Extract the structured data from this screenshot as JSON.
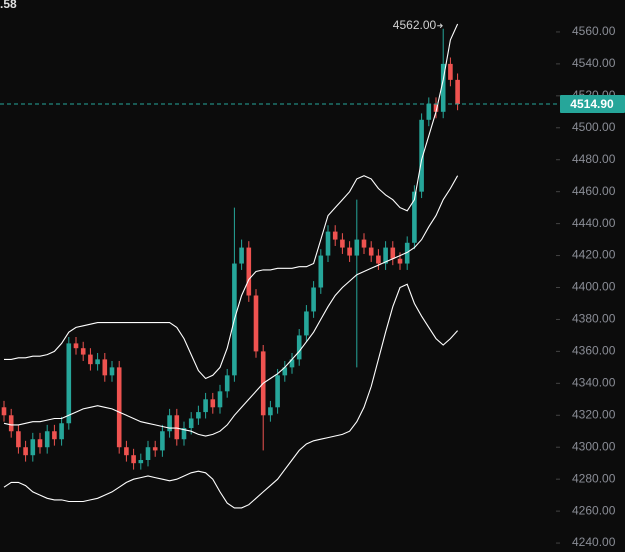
{
  "header_fragment": ".58",
  "chart_data": {
    "type": "candlestick",
    "open": [
      4325,
      4320,
      4310,
      4300,
      4295,
      4305,
      4300,
      4310,
      4305,
      4315,
      4365,
      4362,
      4358,
      4352,
      4355,
      4345,
      4350,
      4300,
      4295,
      4290,
      4292,
      4300,
      4298,
      4310,
      4320,
      4305,
      4312,
      4318,
      4322,
      4330,
      4325,
      4335,
      4345,
      4415,
      4425,
      4395,
      4360,
      4320,
      4325,
      4345,
      4350,
      4355,
      4370,
      4385,
      4400,
      4420,
      4435,
      4430,
      4425,
      4420,
      4430,
      4425,
      4420,
      4415,
      4425,
      4418,
      4415,
      4428,
      4460,
      4505,
      4515,
      4510,
      4540,
      4530
    ],
    "high": [
      4329,
      4324,
      4314,
      4304,
      4309,
      4309,
      4314,
      4314,
      4319,
      4369,
      4369,
      4366,
      4362,
      4359,
      4359,
      4354,
      4354,
      4304,
      4299,
      4296,
      4304,
      4304,
      4314,
      4324,
      4324,
      4316,
      4322,
      4326,
      4334,
      4334,
      4339,
      4349,
      4450,
      4430,
      4429,
      4399,
      4364,
      4329,
      4349,
      4354,
      4359,
      4374,
      4389,
      4404,
      4424,
      4439,
      4439,
      4434,
      4429,
      4455,
      4434,
      4429,
      4424,
      4429,
      4429,
      4422,
      4432,
      4464,
      4509,
      4519,
      4519,
      4562,
      4544,
      4534
    ],
    "low": [
      4316,
      4306,
      4296,
      4291,
      4291,
      4296,
      4296,
      4301,
      4301,
      4311,
      4358,
      4354,
      4348,
      4348,
      4341,
      4341,
      4296,
      4291,
      4286,
      4286,
      4288,
      4294,
      4294,
      4306,
      4301,
      4301,
      4308,
      4314,
      4318,
      4321,
      4321,
      4331,
      4341,
      4411,
      4391,
      4356,
      4298,
      4316,
      4321,
      4341,
      4346,
      4351,
      4366,
      4381,
      4396,
      4416,
      4426,
      4421,
      4416,
      4350,
      4421,
      4416,
      4411,
      4411,
      4414,
      4411,
      4411,
      4424,
      4456,
      4501,
      4506,
      4506,
      4526,
      4511
    ],
    "close": [
      4320,
      4310,
      4300,
      4295,
      4305,
      4300,
      4310,
      4305,
      4315,
      4365,
      4362,
      4358,
      4352,
      4355,
      4345,
      4350,
      4300,
      4295,
      4290,
      4292,
      4300,
      4298,
      4310,
      4320,
      4305,
      4312,
      4318,
      4322,
      4330,
      4325,
      4335,
      4345,
      4415,
      4425,
      4395,
      4360,
      4320,
      4325,
      4345,
      4350,
      4355,
      4370,
      4385,
      4400,
      4420,
      4435,
      4430,
      4425,
      4420,
      4430,
      4425,
      4420,
      4415,
      4425,
      4418,
      4415,
      4428,
      4460,
      4505,
      4515,
      4510,
      4540,
      4530,
      4514.9
    ],
    "up_color": "#26a69a",
    "down_color": "#ef5350",
    "bands": {
      "color": "#ffffff",
      "upper": [
        4355,
        4355,
        4356,
        4356,
        4357,
        4357,
        4358,
        4360,
        4365,
        4372,
        4375,
        4376,
        4377,
        4378,
        4378,
        4378,
        4378,
        4378,
        4378,
        4378,
        4378,
        4378,
        4378,
        4378,
        4375,
        4368,
        4358,
        4348,
        4343,
        4345,
        4350,
        4362,
        4380,
        4395,
        4405,
        4410,
        4411,
        4411,
        4412,
        4412,
        4412,
        4413,
        4413,
        4415,
        4430,
        4445,
        4450,
        4455,
        4460,
        4468,
        4470,
        4468,
        4462,
        4458,
        4455,
        4450,
        4448,
        4455,
        4480,
        4495,
        4510,
        4530,
        4555,
        4565
      ],
      "middle": [
        4315,
        4314,
        4314,
        4315,
        4316,
        4316,
        4317,
        4318,
        4318,
        4320,
        4322,
        4324,
        4325,
        4326,
        4325,
        4324,
        4322,
        4320,
        4318,
        4316,
        4315,
        4314,
        4313,
        4312,
        4312,
        4311,
        4310,
        4308,
        4307,
        4308,
        4310,
        4314,
        4320,
        4325,
        4330,
        4335,
        4340,
        4343,
        4346,
        4350,
        4355,
        4360,
        4366,
        4372,
        4380,
        4388,
        4395,
        4400,
        4404,
        4408,
        4410,
        4412,
        4414,
        4416,
        4418,
        4420,
        4422,
        4425,
        4430,
        4438,
        4445,
        4455,
        4462,
        4470
      ],
      "lower": [
        4275,
        4278,
        4278,
        4276,
        4272,
        4270,
        4268,
        4267,
        4267,
        4266,
        4266,
        4266,
        4267,
        4268,
        4270,
        4272,
        4275,
        4278,
        4280,
        4281,
        4282,
        4281,
        4280,
        4279,
        4280,
        4282,
        4284,
        4285,
        4284,
        4280,
        4272,
        4265,
        4262,
        4262,
        4264,
        4268,
        4272,
        4276,
        4280,
        4286,
        4292,
        4298,
        4302,
        4304,
        4305,
        4306,
        4307,
        4308,
        4310,
        4316,
        4325,
        4338,
        4355,
        4372,
        4388,
        4400,
        4402,
        4390,
        4382,
        4375,
        4368,
        4364,
        4368,
        4373
      ]
    },
    "ylim": [
      4234.4,
      4580
    ],
    "yticks": [
      {
        "value": 4240,
        "label": "4240.00"
      },
      {
        "value": 4260,
        "label": "4260.00"
      },
      {
        "value": 4280,
        "label": "4280.00"
      },
      {
        "value": 4300,
        "label": "4300.00"
      },
      {
        "value": 4320,
        "label": "4320.00"
      },
      {
        "value": 4340,
        "label": "4340.00"
      },
      {
        "value": 4360,
        "label": "4360.00"
      },
      {
        "value": 4380,
        "label": "4380.00"
      },
      {
        "value": 4400,
        "label": "4400.00"
      },
      {
        "value": 4420,
        "label": "4420.00"
      },
      {
        "value": 4440,
        "label": "4440.00"
      },
      {
        "value": 4460,
        "label": "4460.00"
      },
      {
        "value": 4480,
        "label": "4480.00"
      },
      {
        "value": 4500,
        "label": "4500.00"
      },
      {
        "value": 4520,
        "label": "4520.00"
      },
      {
        "value": 4540,
        "label": "4540.00"
      },
      {
        "value": 4560,
        "label": "4560.00"
      }
    ],
    "high_marker": {
      "value": 4562,
      "label": "4562.00",
      "index": 61
    },
    "last_price": {
      "value": 4514.9,
      "label": "4514.90",
      "color": "#26a69a"
    }
  }
}
